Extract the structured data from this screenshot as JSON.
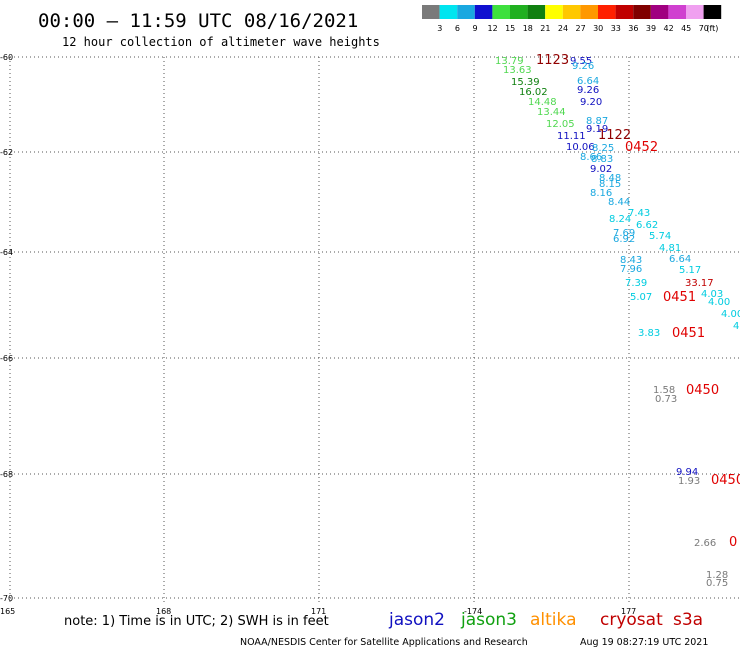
{
  "header": {
    "title": "00:00 – 11:59 UTC 08/16/2021",
    "subtitle": "12 hour collection of altimeter wave heights"
  },
  "scale": {
    "colors": [
      "#7a7a7a",
      "#00e5f0",
      "#1aa8e0",
      "#1010d0",
      "#3ee03e",
      "#20b020",
      "#108010",
      "#ffff00",
      "#ffc800",
      "#ff9800",
      "#ff2000",
      "#c00000",
      "#800000",
      "#a00080",
      "#d040d0",
      "#f0a0f0",
      "#000000"
    ],
    "labels": [
      "3",
      "6",
      "9",
      "12",
      "15",
      "18",
      "21",
      "24",
      "27",
      "30",
      "33",
      "36",
      "39",
      "42",
      "45",
      "70",
      "(ft)"
    ]
  },
  "axes": {
    "lat_labels": [
      "-60",
      "-62",
      "-64",
      "-66",
      "-68",
      "-70"
    ],
    "lon_labels": [
      "165",
      "168",
      "171",
      "-174",
      "177"
    ]
  },
  "footer": {
    "note": "note: 1) Time is in UTC; 2) SWH is in feet",
    "legend": [
      {
        "name": "jason2",
        "color": "#1010c0"
      },
      {
        "name": "jason3",
        "color": "#10a010"
      },
      {
        "name": "altika",
        "color": "#ff9000"
      },
      {
        "name": "cryosat",
        "color": "#c00000"
      },
      {
        "name": "s3a",
        "color": "#c00000"
      }
    ],
    "credit": "NOAA/NESDIS Center for Satellite Applications and Research",
    "timestamp": "Aug 19 08:27:19 UTC 2021"
  },
  "observations": [
    {
      "text": "13.79",
      "color": "#50d850"
    },
    {
      "text": "1123",
      "color": "#900000"
    },
    {
      "text": "9.55",
      "color": "#1010c0"
    },
    {
      "text": "13.63",
      "color": "#50d850"
    },
    {
      "text": "9.26",
      "color": "#1aa8e0"
    },
    {
      "text": "15.39",
      "color": "#108010"
    },
    {
      "text": "6.64",
      "color": "#1aa8e0"
    },
    {
      "text": "16.02",
      "color": "#108010"
    },
    {
      "text": "9.26",
      "color": "#1010c0"
    },
    {
      "text": "14.48",
      "color": "#50d850"
    },
    {
      "text": "9.20",
      "color": "#1010c0"
    },
    {
      "text": "13.44",
      "color": "#50d850"
    },
    {
      "text": "12.05",
      "color": "#50d850"
    },
    {
      "text": "8.87",
      "color": "#1aa8e0"
    },
    {
      "text": "9.19",
      "color": "#1010c0"
    },
    {
      "text": "11.11",
      "color": "#1010c0"
    },
    {
      "text": "1122",
      "color": "#900000"
    },
    {
      "text": "10.06",
      "color": "#1010c0"
    },
    {
      "text": "8.25",
      "color": "#1aa8e0"
    },
    {
      "text": "0452",
      "color": "#e00000"
    },
    {
      "text": "8.66",
      "color": "#1aa8e0"
    },
    {
      "text": "8.83",
      "color": "#1aa8e0"
    },
    {
      "text": "9.02",
      "color": "#1010c0"
    },
    {
      "text": "8.48",
      "color": "#1aa8e0"
    },
    {
      "text": "8.15",
      "color": "#1aa8e0"
    },
    {
      "text": "8.16",
      "color": "#1aa8e0"
    },
    {
      "text": "8.44",
      "color": "#1aa8e0"
    },
    {
      "text": "7.43",
      "color": "#00cce0"
    },
    {
      "text": "8.24",
      "color": "#00cce0"
    },
    {
      "text": "6.62",
      "color": "#00cce0"
    },
    {
      "text": "7.69",
      "color": "#1aa8e0"
    },
    {
      "text": "5.74",
      "color": "#00cce0"
    },
    {
      "text": "6.92",
      "color": "#1aa8e0"
    },
    {
      "text": "4.81",
      "color": "#00cce0"
    },
    {
      "text": "6.64",
      "color": "#1aa8e0"
    },
    {
      "text": "8.43",
      "color": "#1aa8e0"
    },
    {
      "text": "7.96",
      "color": "#1aa8e0"
    },
    {
      "text": "5.17",
      "color": "#00cce0"
    },
    {
      "text": "7.39",
      "color": "#00cce0"
    },
    {
      "text": "33.17",
      "color": "#c00000"
    },
    {
      "text": "4.03",
      "color": "#00cce0"
    },
    {
      "text": "5.07",
      "color": "#00cce0"
    },
    {
      "text": "0451",
      "color": "#e00000"
    },
    {
      "text": "4.00",
      "color": "#00cce0"
    },
    {
      "text": "4.00",
      "color": "#00cce0"
    },
    {
      "text": "4",
      "color": "#00cce0"
    },
    {
      "text": "3.83",
      "color": "#00cce0"
    },
    {
      "text": "0451",
      "color": "#e00000"
    },
    {
      "text": "1.58",
      "color": "#7a7a7a"
    },
    {
      "text": "0450",
      "color": "#e00000"
    },
    {
      "text": "0.73",
      "color": "#7a7a7a"
    },
    {
      "text": "9.94",
      "color": "#1010c0"
    },
    {
      "text": "1.93",
      "color": "#7a7a7a"
    },
    {
      "text": "0450",
      "color": "#e00000"
    },
    {
      "text": "2.66",
      "color": "#7a7a7a"
    },
    {
      "text": "0",
      "color": "#e00000"
    },
    {
      "text": "1.28",
      "color": "#7a7a7a"
    },
    {
      "text": "0.75",
      "color": "#7a7a7a"
    }
  ]
}
